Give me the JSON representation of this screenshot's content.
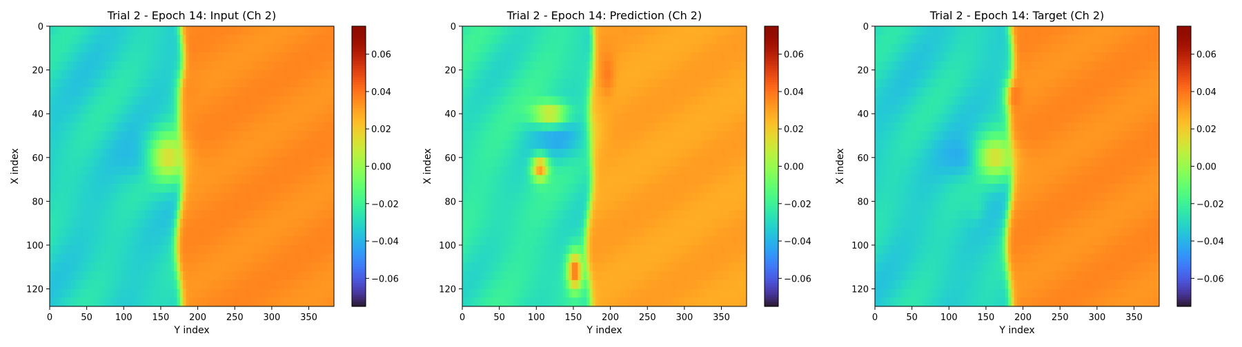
{
  "chart_data": [
    {
      "type": "heatmap",
      "title": "Trial 2 - Epoch 14: Input (Ch 2)",
      "xlabel": "Y index",
      "ylabel": "X index",
      "xlim": [
        0,
        384
      ],
      "ylim": [
        128,
        0
      ],
      "x_ticks": [
        0,
        50,
        100,
        150,
        200,
        250,
        300,
        350
      ],
      "y_ticks": [
        0,
        20,
        40,
        60,
        80,
        100,
        120
      ],
      "colorbar": {
        "range": [
          -0.075,
          0.075
        ],
        "ticks": [
          "0.06",
          "0.04",
          "0.02",
          "0.00",
          "−0.02",
          "−0.04",
          "−0.06"
        ],
        "tick_values": [
          0.06,
          0.04,
          0.02,
          0.0,
          -0.02,
          -0.04,
          -0.06
        ],
        "colormap": "turbo"
      },
      "field": {
        "front_y": 176,
        "left_level": -0.03,
        "right_level": 0.035,
        "features": [
          {
            "y": 132,
            "x": 60,
            "sy": 7,
            "sx": 22,
            "value": -0.045
          },
          {
            "y": 190,
            "x": 30,
            "sy": 6,
            "sx": 10,
            "value": 0.035
          },
          {
            "y": 160,
            "x": 60,
            "sy": 8,
            "sx": 20,
            "value": 0.02
          }
        ]
      }
    },
    {
      "type": "heatmap",
      "title": "Trial 2 - Epoch 14: Prediction (Ch 2)",
      "xlabel": "Y index",
      "ylabel": "X index",
      "xlim": [
        0,
        384
      ],
      "ylim": [
        128,
        0
      ],
      "x_ticks": [
        0,
        50,
        100,
        150,
        200,
        250,
        300,
        350
      ],
      "y_ticks": [
        0,
        20,
        40,
        60,
        80,
        100,
        120
      ],
      "colorbar": {
        "range": [
          -0.075,
          0.075
        ],
        "ticks": [
          "0.06",
          "0.04",
          "0.02",
          "0.00",
          "−0.02",
          "−0.04",
          "−0.06"
        ],
        "tick_values": [
          0.06,
          0.04,
          0.02,
          0.0,
          -0.02,
          -0.04,
          -0.06
        ],
        "colormap": "turbo"
      },
      "field": {
        "front_y": 172,
        "left_level": -0.025,
        "right_level": 0.03,
        "features": [
          {
            "y": 130,
            "x": 50,
            "sy": 8,
            "sx": 26,
            "value": -0.045
          },
          {
            "y": 196,
            "x": 22,
            "sy": 7,
            "sx": 7,
            "value": 0.04
          },
          {
            "y": 105,
            "x": 65,
            "sy": 4,
            "sx": 8,
            "value": 0.04
          },
          {
            "y": 152,
            "x": 112,
            "sy": 6,
            "sx": 7,
            "value": 0.05
          },
          {
            "y": 118,
            "x": 40,
            "sy": 4,
            "sx": 18,
            "value": 0.02
          },
          {
            "y": 170,
            "x": 5,
            "sy": 8,
            "sx": 5,
            "value": -0.03
          }
        ]
      }
    },
    {
      "type": "heatmap",
      "title": "Trial 2 - Epoch 14: Target (Ch 2)",
      "xlabel": "Y index",
      "ylabel": "X index",
      "xlim": [
        0,
        384
      ],
      "ylim": [
        128,
        0
      ],
      "x_ticks": [
        0,
        50,
        100,
        150,
        200,
        250,
        300,
        350
      ],
      "y_ticks": [
        0,
        20,
        40,
        60,
        80,
        100,
        120
      ],
      "colorbar": {
        "range": [
          -0.075,
          0.075
        ],
        "ticks": [
          "0.06",
          "0.04",
          "0.02",
          "0.00",
          "−0.02",
          "−0.04",
          "−0.06"
        ],
        "tick_values": [
          0.06,
          0.04,
          0.02,
          0.0,
          -0.02,
          -0.04,
          -0.06
        ],
        "colormap": "turbo"
      },
      "field": {
        "front_y": 182,
        "left_level": -0.03,
        "right_level": 0.035,
        "features": [
          {
            "y": 133,
            "x": 60,
            "sy": 6,
            "sx": 25,
            "value": -0.05
          },
          {
            "y": 136,
            "x": 82,
            "sy": 5,
            "sx": 8,
            "value": -0.025
          },
          {
            "y": 188,
            "x": 32,
            "sy": 5,
            "sx": 8,
            "value": 0.04
          },
          {
            "y": 162,
            "x": 60,
            "sy": 7,
            "sx": 20,
            "value": 0.02
          }
        ]
      }
    }
  ]
}
